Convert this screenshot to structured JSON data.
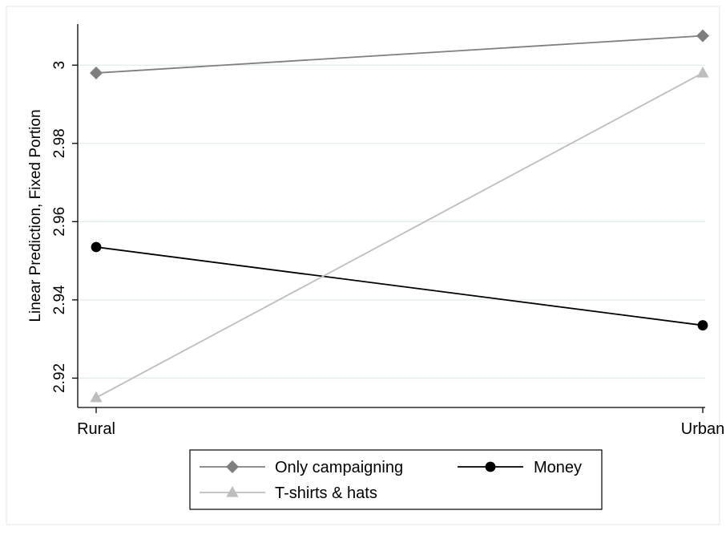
{
  "chart_data": {
    "type": "line",
    "categories": [
      "Rural",
      "Urban"
    ],
    "ylabel": "Linear Prediction, Fixed Portion",
    "xlabel": "",
    "ylim": [
      2.9125,
      3.0105
    ],
    "yticks": [
      2.92,
      2.94,
      2.96,
      2.98,
      3
    ],
    "ytick_labels": [
      "2.92",
      "2.94",
      "2.96",
      "2.98",
      "3"
    ],
    "grid": true,
    "legend_position": "bottom",
    "series": [
      {
        "name": "Only campaigning",
        "values": [
          2.998,
          3.0075
        ],
        "color": "#7f7f7f",
        "marker": "diamond"
      },
      {
        "name": "Money",
        "values": [
          2.9535,
          2.9335
        ],
        "color": "#000000",
        "marker": "circle"
      },
      {
        "name": "T-shirts & hats",
        "values": [
          2.915,
          2.998
        ],
        "color": "#bdbdbd",
        "marker": "triangle"
      }
    ]
  }
}
